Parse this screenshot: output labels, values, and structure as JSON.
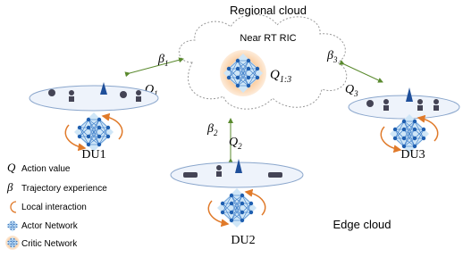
{
  "header": {
    "title": "Regional cloud"
  },
  "ric": {
    "label": "Near RT RIC",
    "q": {
      "symbol": "Q",
      "sub": "1:3"
    }
  },
  "links": [
    {
      "beta": {
        "symbol": "β",
        "sub": "1"
      },
      "q": {
        "symbol": "Q",
        "sub": "1"
      }
    },
    {
      "beta": {
        "symbol": "β",
        "sub": "2"
      },
      "q": {
        "symbol": "Q",
        "sub": "2"
      }
    },
    {
      "beta": {
        "symbol": "β",
        "sub": "3"
      },
      "q": {
        "symbol": "Q",
        "sub": "3"
      }
    }
  ],
  "nodes": [
    {
      "label": "DU1"
    },
    {
      "label": "DU2"
    },
    {
      "label": "DU3"
    }
  ],
  "legend": [
    {
      "symbol": "Q",
      "label": "Action value"
    },
    {
      "symbol": "β",
      "label": "Trajectory experience"
    },
    {
      "label": "Local interaction"
    },
    {
      "label": "Actor Network"
    },
    {
      "label": "Critic Network"
    }
  ],
  "edge_label": "Edge cloud"
}
